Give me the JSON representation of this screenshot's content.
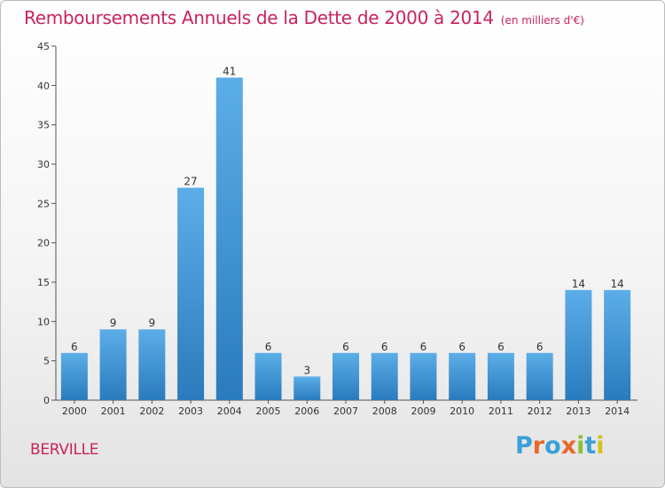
{
  "header": {
    "title": "Remboursements Annuels de la Dette de 2000 à 2014",
    "unit": "(en milliers d'€)"
  },
  "footer": {
    "commune": "BERVILLE",
    "brand": {
      "letters": [
        "P",
        "r",
        "o",
        "x",
        "i",
        "t",
        "i"
      ],
      "colors": [
        "#3aa0d8",
        "#e8672a",
        "#3aa0d8",
        "#e8672a",
        "#8cbf3a",
        "#3aa0d8",
        "#d4c21e"
      ]
    }
  },
  "chart_data": {
    "type": "bar",
    "categories": [
      "2000",
      "2001",
      "2002",
      "2003",
      "2004",
      "2005",
      "2006",
      "2007",
      "2008",
      "2009",
      "2010",
      "2011",
      "2012",
      "2013",
      "2014"
    ],
    "values": [
      6,
      9,
      9,
      27,
      41,
      6,
      3,
      6,
      6,
      6,
      6,
      6,
      6,
      14,
      14
    ],
    "data_labels": [
      "6",
      "9",
      "9",
      "27",
      "41",
      "6",
      "3",
      "6",
      "6",
      "6",
      "6",
      "6",
      "6",
      "14",
      "14"
    ],
    "ylim": [
      0,
      45
    ],
    "yticks": [
      0,
      5,
      10,
      15,
      20,
      25,
      30,
      35,
      40,
      45
    ],
    "grid": false,
    "bar_color_top": "#5caee8",
    "bar_color_bottom": "#2a7bbd"
  }
}
